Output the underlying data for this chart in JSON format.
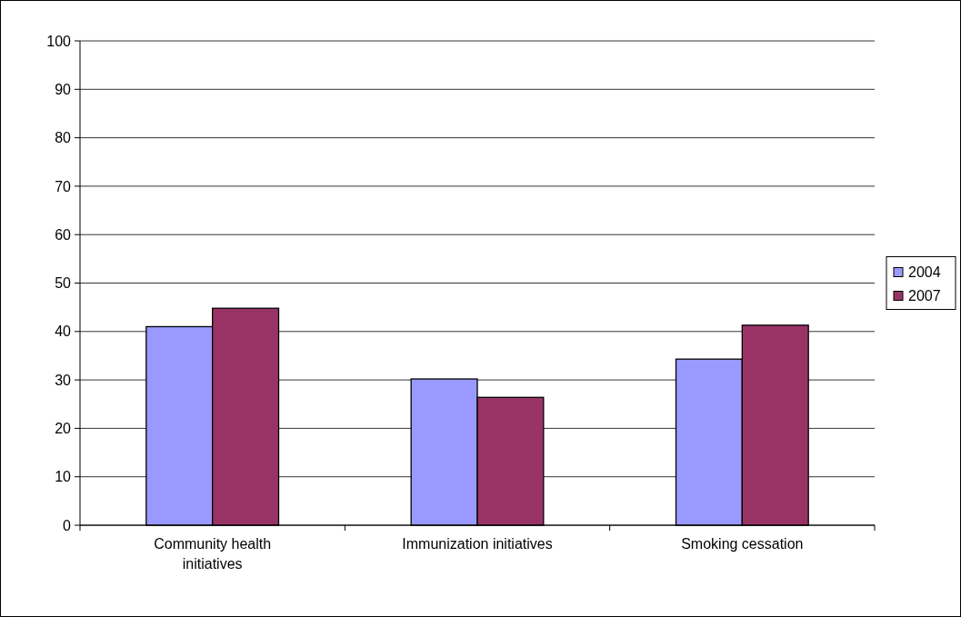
{
  "chart_data": {
    "type": "bar",
    "categories": [
      "Community health initiatives",
      "Immunization initiatives",
      "Smoking cessation"
    ],
    "series": [
      {
        "name": "2004",
        "color": "#9999ff",
        "values": [
          41,
          30.2,
          34.3
        ]
      },
      {
        "name": "2007",
        "color": "#993366",
        "values": [
          44.8,
          26.4,
          41.3
        ]
      }
    ],
    "ylim": [
      0,
      100
    ],
    "yticks": [
      0,
      10,
      20,
      30,
      40,
      50,
      60,
      70,
      80,
      90,
      100
    ],
    "grid": "y",
    "legend": "right"
  }
}
